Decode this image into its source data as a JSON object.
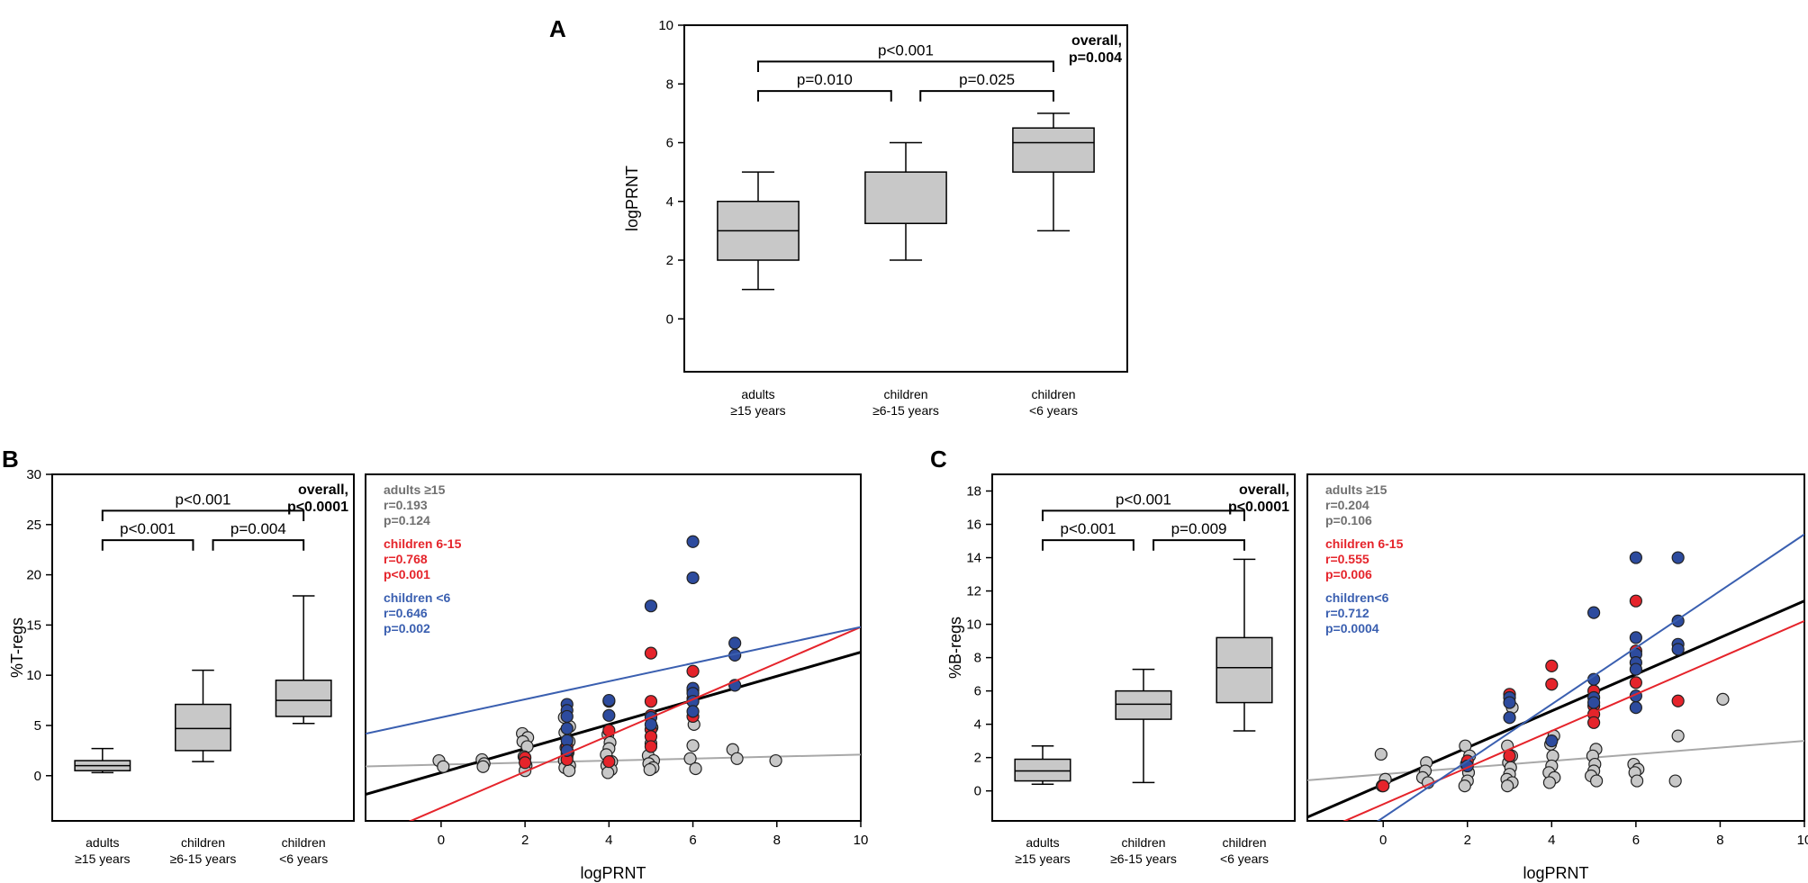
{
  "chart_data": [
    {
      "id": "A",
      "type": "box",
      "panel_label": "A",
      "ylabel": "logPRNT",
      "ylim": [
        -1.8,
        10
      ],
      "yticks": [
        0,
        2,
        4,
        6,
        8,
        10
      ],
      "categories": [
        {
          "lines": [
            "adults",
            "≥15 years"
          ]
        },
        {
          "lines": [
            "children",
            "≥6-15 years"
          ]
        },
        {
          "lines": [
            "children",
            "<6 years"
          ]
        }
      ],
      "boxes": [
        {
          "min": 1,
          "q1": 2,
          "median": 3,
          "q3": 4,
          "max": 5
        },
        {
          "min": 2,
          "q1": 3.25,
          "median": 3.25,
          "q3": 5,
          "max": 6
        },
        {
          "min": 3,
          "q1": 5,
          "median": 6,
          "q3": 6.5,
          "max": 7
        }
      ],
      "brackets": [
        {
          "from": 0,
          "to": 2,
          "level": 0,
          "label": "p<0.001"
        },
        {
          "from": 0,
          "to": 1,
          "level": 1,
          "label": "p=0.010"
        },
        {
          "from": 1,
          "to": 2,
          "level": 1,
          "label": "p=0.025"
        }
      ],
      "overall": [
        "overall,",
        "p=0.004"
      ]
    },
    {
      "id": "B",
      "type": "box",
      "panel_label": "B",
      "ylabel": "%T-regs",
      "ylim": [
        -4.5,
        30
      ],
      "yticks": [
        0,
        5,
        10,
        15,
        20,
        25,
        30
      ],
      "categories": [
        {
          "lines": [
            "adults",
            "≥15 years"
          ]
        },
        {
          "lines": [
            "children",
            "≥6-15 years"
          ]
        },
        {
          "lines": [
            "children",
            "<6 years"
          ]
        }
      ],
      "boxes": [
        {
          "min": 0.3,
          "q1": 0.5,
          "median": 1.0,
          "q3": 1.5,
          "max": 2.7
        },
        {
          "min": 1.4,
          "q1": 2.5,
          "median": 4.7,
          "q3": 7.1,
          "max": 10.5
        },
        {
          "min": 5.2,
          "q1": 5.9,
          "median": 7.5,
          "q3": 9.5,
          "max": 17.9
        }
      ],
      "brackets": [
        {
          "from": 0,
          "to": 2,
          "level": 0,
          "label": "p<0.001"
        },
        {
          "from": 0,
          "to": 1,
          "level": 1,
          "label": "p<0.001"
        },
        {
          "from": 1,
          "to": 2,
          "level": 1,
          "label": "p=0.004"
        }
      ],
      "overall": [
        "overall,",
        "p<0.0001"
      ]
    },
    {
      "id": "B-scatter",
      "type": "scatter",
      "xlabel": "logPRNT",
      "xlim": [
        -1.8,
        10
      ],
      "ylim": [
        -4.5,
        30
      ],
      "xticks": [
        0,
        2,
        4,
        6,
        8,
        10
      ],
      "series": [
        {
          "name": "adults ≥15",
          "color": "#c8c8c8",
          "line_color": "#a8a8a8",
          "fit": {
            "slope": 0.1,
            "intercept": 1.1
          },
          "x": [
            0,
            0,
            1,
            1,
            1,
            2,
            2,
            2,
            2,
            2,
            2,
            2,
            3,
            3,
            3,
            3,
            3,
            3,
            3,
            3,
            3,
            3,
            3,
            4,
            4,
            4,
            4,
            4,
            4,
            4,
            4,
            5,
            5,
            5,
            5,
            5,
            5,
            5,
            6,
            6,
            6,
            6,
            7,
            7,
            8
          ],
          "y": [
            1.5,
            0.9,
            1.6,
            1.2,
            0.9,
            4.2,
            3.8,
            3.4,
            2.9,
            1.9,
            1.0,
            0.5,
            5.8,
            4.9,
            4.3,
            3.4,
            2.8,
            2.3,
            1.9,
            1.5,
            1.0,
            0.8,
            0.5,
            4.1,
            3.3,
            2.7,
            2.1,
            1.4,
            1.0,
            0.6,
            0.3,
            4.8,
            3.2,
            2.0,
            1.5,
            1.2,
            0.8,
            0.6,
            5.1,
            3.0,
            1.7,
            0.7,
            2.6,
            1.7,
            1.5
          ]
        },
        {
          "name": "children 6-15",
          "color": "#e5242b",
          "line_color": "#e5242b",
          "fit": {
            "slope": 1.8,
            "intercept": -3.2
          },
          "x": [
            2,
            2,
            3,
            3,
            3,
            4,
            4,
            4,
            5,
            5,
            5,
            5,
            5,
            5,
            6,
            6,
            6,
            6
          ],
          "y": [
            1.8,
            1.3,
            2.9,
            2.2,
            1.6,
            7.4,
            4.5,
            1.4,
            12.2,
            7.4,
            6.0,
            4.6,
            3.9,
            2.9,
            10.4,
            8.5,
            7.7,
            5.9
          ]
        },
        {
          "name": "children <6",
          "color": "#2d4b9e",
          "line_color": "#3a5fb0",
          "fit": {
            "slope": 0.9,
            "intercept": 5.8
          },
          "x": [
            3,
            3,
            3,
            3,
            3,
            3,
            4,
            4,
            5,
            5,
            5,
            6,
            6,
            6,
            6,
            6,
            6,
            7,
            7,
            7
          ],
          "y": [
            7.1,
            6.5,
            5.9,
            4.7,
            3.5,
            2.5,
            7.5,
            6.0,
            16.9,
            5.8,
            5.1,
            23.3,
            19.7,
            8.7,
            8.2,
            7.4,
            6.4,
            13.2,
            12.0,
            9.0
          ]
        },
        {
          "name": "overall",
          "color": "#000000",
          "line_color": "#000000",
          "fit": {
            "slope": 1.2,
            "intercept": 0.3
          },
          "x": [],
          "y": []
        }
      ],
      "annotations": [
        {
          "color": "#707070",
          "lines": [
            "adults ≥15",
            "r=0.193",
            "p=0.124"
          ]
        },
        {
          "color": "#e5242b",
          "lines": [
            "children 6-15",
            "r=0.768",
            "p<0.001"
          ]
        },
        {
          "color": "#3a5fb0",
          "lines": [
            "children <6",
            "r=0.646",
            "p=0.002"
          ]
        }
      ]
    },
    {
      "id": "C",
      "type": "box",
      "panel_label": "C",
      "ylabel": "%B-regs",
      "ylim": [
        -1.8,
        19
      ],
      "yticks": [
        0,
        2,
        4,
        6,
        8,
        10,
        12,
        14,
        16,
        18
      ],
      "categories": [
        {
          "lines": [
            "adults",
            "≥15 years"
          ]
        },
        {
          "lines": [
            "children",
            "≥6-15 years"
          ]
        },
        {
          "lines": [
            "children",
            "<6 years"
          ]
        }
      ],
      "boxes": [
        {
          "min": 0.4,
          "q1": 0.6,
          "median": 1.2,
          "q3": 1.9,
          "max": 2.7
        },
        {
          "min": 0.5,
          "q1": 4.3,
          "median": 5.2,
          "q3": 6.0,
          "max": 7.3
        },
        {
          "min": 3.6,
          "q1": 5.3,
          "median": 7.4,
          "q3": 9.2,
          "max": 13.9
        }
      ],
      "brackets": [
        {
          "from": 0,
          "to": 2,
          "level": 0,
          "label": "p<0.001"
        },
        {
          "from": 0,
          "to": 1,
          "level": 1,
          "label": "p<0.001"
        },
        {
          "from": 1,
          "to": 2,
          "level": 1,
          "label": "p=0.009"
        }
      ],
      "overall": [
        "overall,",
        "p<0.0001"
      ]
    },
    {
      "id": "C-scatter",
      "type": "scatter",
      "xlabel": "logPRNT",
      "xlim": [
        -1.8,
        10
      ],
      "ylim": [
        -1.8,
        19
      ],
      "xticks": [
        0,
        2,
        4,
        6,
        8,
        10
      ],
      "series": [
        {
          "name": "adults ≥15",
          "color": "#c8c8c8",
          "line_color": "#a8a8a8",
          "fit": {
            "slope": 0.2,
            "intercept": 1.0
          },
          "x": [
            0,
            0,
            0,
            1,
            1,
            1,
            1,
            2,
            2,
            2,
            2,
            2,
            2,
            3,
            3,
            3,
            3,
            3,
            3,
            3,
            3,
            3,
            4,
            4,
            4,
            4,
            4,
            4,
            4,
            5,
            5,
            5,
            5,
            5,
            5,
            6,
            6,
            6,
            6,
            7,
            7,
            8
          ],
          "y": [
            2.2,
            0.7,
            0.3,
            1.7,
            1.2,
            0.8,
            0.5,
            2.7,
            2.1,
            1.6,
            1.1,
            0.6,
            0.3,
            5.0,
            2.7,
            2.1,
            1.7,
            1.4,
            1.0,
            0.7,
            0.5,
            0.3,
            3.3,
            2.8,
            2.1,
            1.5,
            1.1,
            0.8,
            0.5,
            2.5,
            2.1,
            1.6,
            1.2,
            0.9,
            0.6,
            1.6,
            1.3,
            1.1,
            0.6,
            3.3,
            0.6,
            5.5
          ]
        },
        {
          "name": "children 6-15",
          "color": "#e5242b",
          "line_color": "#e5242b",
          "fit": {
            "slope": 1.1,
            "intercept": -0.8
          },
          "x": [
            0,
            2,
            3,
            3,
            4,
            4,
            5,
            5,
            5,
            5,
            6,
            6,
            6,
            7
          ],
          "y": [
            0.3,
            1.8,
            5.8,
            2.1,
            7.5,
            6.4,
            6.0,
            5.1,
            4.6,
            4.1,
            11.4,
            8.4,
            6.5,
            5.4
          ]
        },
        {
          "name": "children<6",
          "color": "#2d4b9e",
          "line_color": "#3a5fb0",
          "fit": {
            "slope": 1.7,
            "intercept": -1.6
          },
          "x": [
            2,
            3,
            3,
            3,
            4,
            5,
            5,
            5,
            5,
            6,
            6,
            6,
            6,
            6,
            6,
            6,
            7,
            7,
            7,
            7
          ],
          "y": [
            1.5,
            5.6,
            5.3,
            4.4,
            3.0,
            10.7,
            6.7,
            5.6,
            5.3,
            14.0,
            9.2,
            8.2,
            7.7,
            7.3,
            5.7,
            5.0,
            14.0,
            10.2,
            8.8,
            8.5
          ]
        },
        {
          "name": "overall",
          "color": "#000000",
          "line_color": "#000000",
          "fit": {
            "slope": 1.1,
            "intercept": 0.4
          },
          "x": [],
          "y": []
        }
      ],
      "annotations": [
        {
          "color": "#707070",
          "lines": [
            "adults ≥15",
            "r=0.204",
            "p=0.106"
          ]
        },
        {
          "color": "#e5242b",
          "lines": [
            "children 6-15",
            "r=0.555",
            "p=0.006"
          ]
        },
        {
          "color": "#3a5fb0",
          "lines": [
            "children<6",
            "r=0.712",
            "p=0.0004"
          ]
        }
      ]
    }
  ]
}
